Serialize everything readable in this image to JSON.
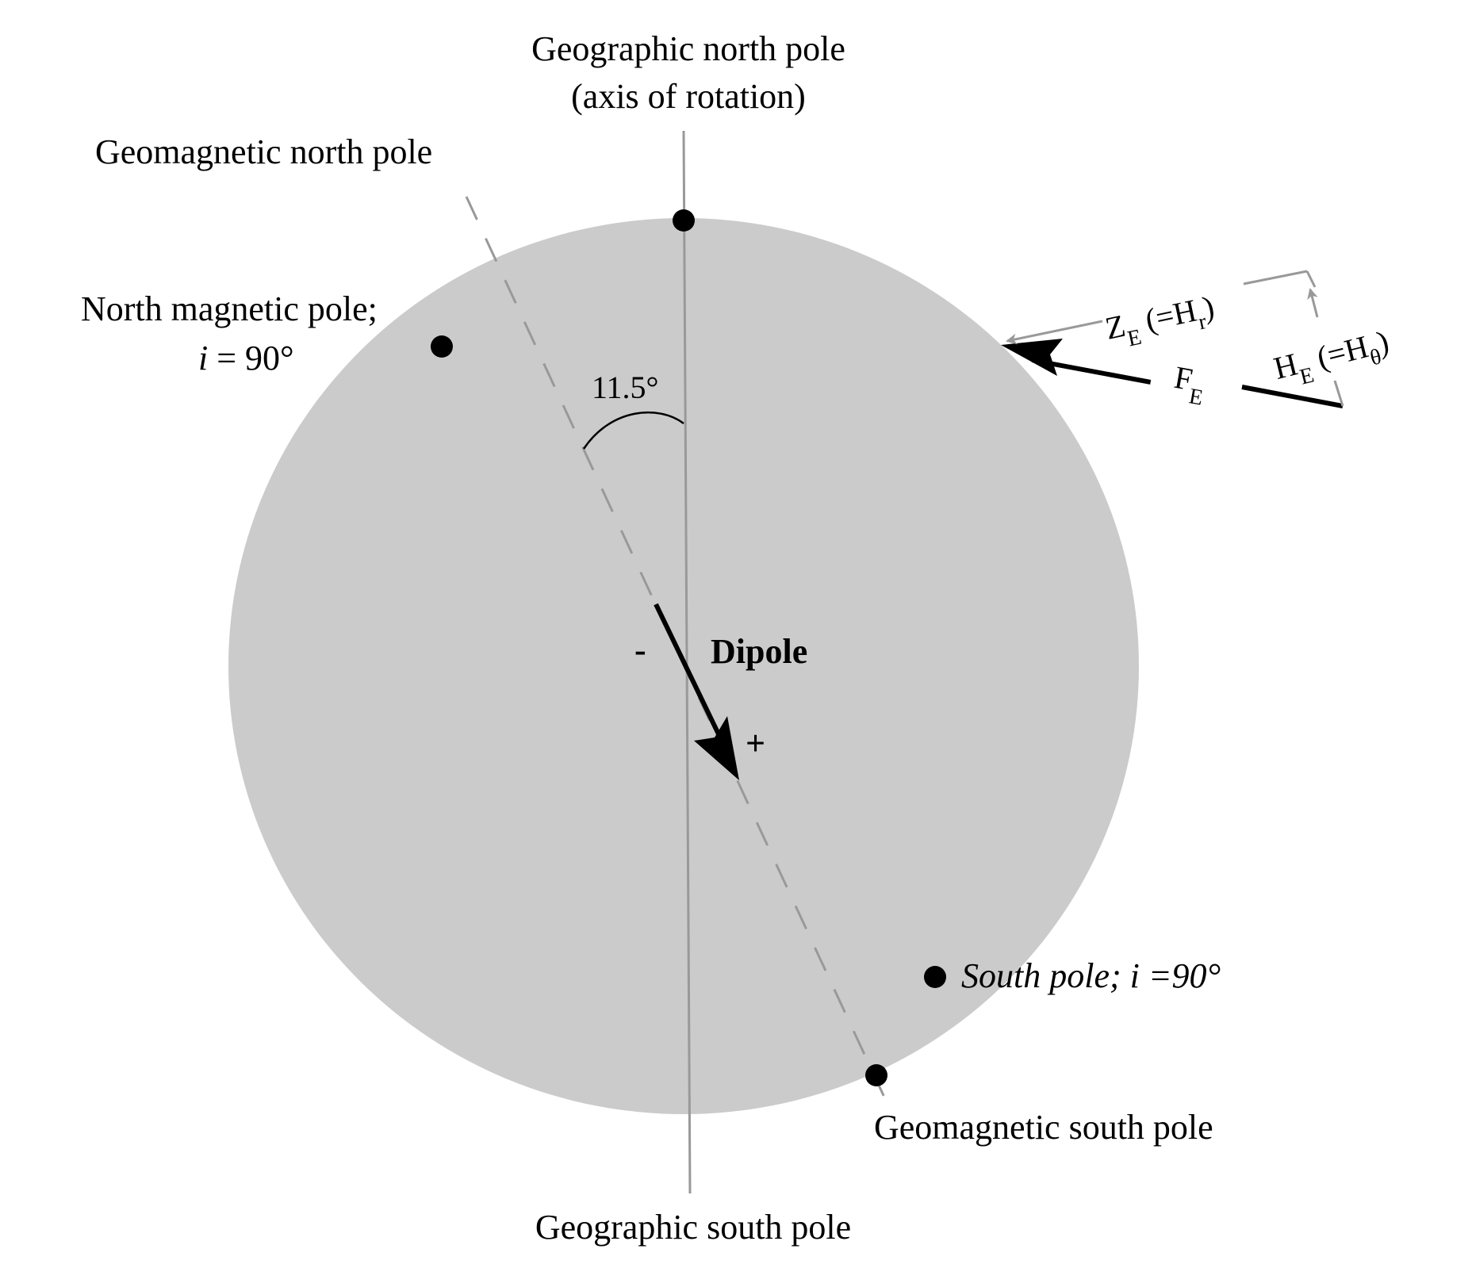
{
  "labels": {
    "geo_north_line1": "Geographic north pole",
    "geo_north_line2": "(axis of rotation)",
    "geomag_north": "Geomagnetic north pole",
    "north_mag_line1": "North magnetic pole;",
    "north_mag_i": "i",
    "north_mag_value": " = 90°",
    "angle": "11.5°",
    "dipole": "Dipole",
    "minus": "-",
    "plus": "+",
    "south_pole": "South pole; i =90°",
    "geomag_south": "Geomagnetic south pole",
    "geo_south": "Geographic south pole"
  },
  "vectors": {
    "z_main": "Z",
    "z_sub": "E",
    "z_paren_open": " (=H",
    "z_paren_sub": "r",
    "z_paren_close": ")",
    "h_main": "H",
    "h_sub": "E",
    "h_paren_open": " (=H",
    "h_paren_sub": "θ",
    "h_paren_close": ")",
    "f_main": "F",
    "f_sub": "E"
  },
  "geometry_meaning": {
    "tilt_deg": 11.5
  },
  "colors": {
    "earth_fill": "#cbcbcb",
    "axis_gray": "#999999",
    "ink": "#000000"
  }
}
